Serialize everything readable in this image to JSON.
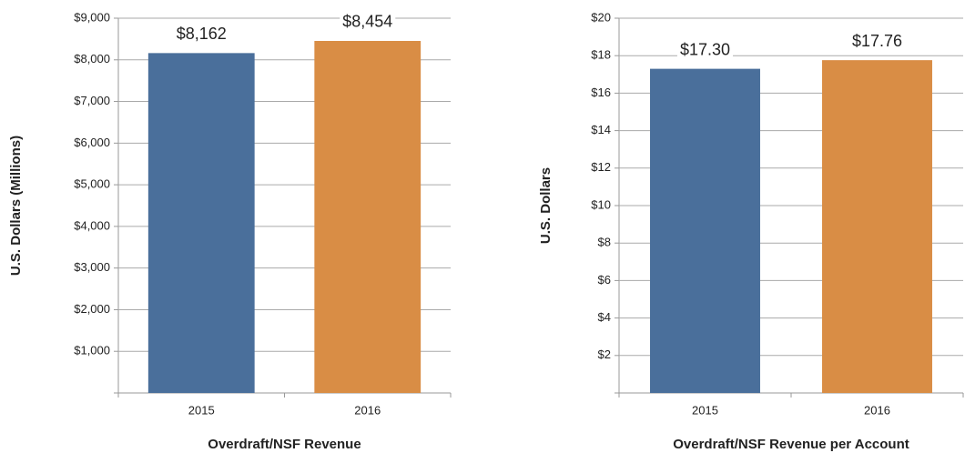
{
  "chart_data": [
    {
      "type": "bar",
      "title": "Overdraft/NSF Revenue",
      "y_label": "U.S. Dollars (Millions)",
      "categories": [
        "2015",
        "2016"
      ],
      "values": [
        8162,
        8454
      ],
      "value_labels": [
        "$8,162",
        "$8,454"
      ],
      "colors": [
        "#4a6f9b",
        "#d98d45"
      ],
      "ylim": [
        0,
        9000
      ],
      "yticks": [
        {
          "value": 1000,
          "label": "$1,000"
        },
        {
          "value": 2000,
          "label": "$2,000"
        },
        {
          "value": 3000,
          "label": "$3,000"
        },
        {
          "value": 4000,
          "label": "$4,000"
        },
        {
          "value": 5000,
          "label": "$5,000"
        },
        {
          "value": 6000,
          "label": "$6,000"
        },
        {
          "value": 7000,
          "label": "$7,000"
        },
        {
          "value": 8000,
          "label": "$8,000"
        },
        {
          "value": 9000,
          "label": "$9,000"
        }
      ],
      "grid": true
    },
    {
      "type": "bar",
      "title": "Overdraft/NSF Revenue per Account",
      "y_label": "U.S. Dollars",
      "categories": [
        "2015",
        "2016"
      ],
      "values": [
        17.3,
        17.76
      ],
      "value_labels": [
        "$17.30",
        "$17.76"
      ],
      "colors": [
        "#4a6f9b",
        "#d98d45"
      ],
      "ylim": [
        0,
        20
      ],
      "yticks": [
        {
          "value": 2,
          "label": "$2"
        },
        {
          "value": 4,
          "label": "$4"
        },
        {
          "value": 6,
          "label": "$6"
        },
        {
          "value": 8,
          "label": "$8"
        },
        {
          "value": 10,
          "label": "$10"
        },
        {
          "value": 12,
          "label": "$12"
        },
        {
          "value": 14,
          "label": "$14"
        },
        {
          "value": 16,
          "label": "$16"
        },
        {
          "value": 18,
          "label": "$18"
        },
        {
          "value": 20,
          "label": "$20"
        }
      ],
      "grid": true
    }
  ]
}
